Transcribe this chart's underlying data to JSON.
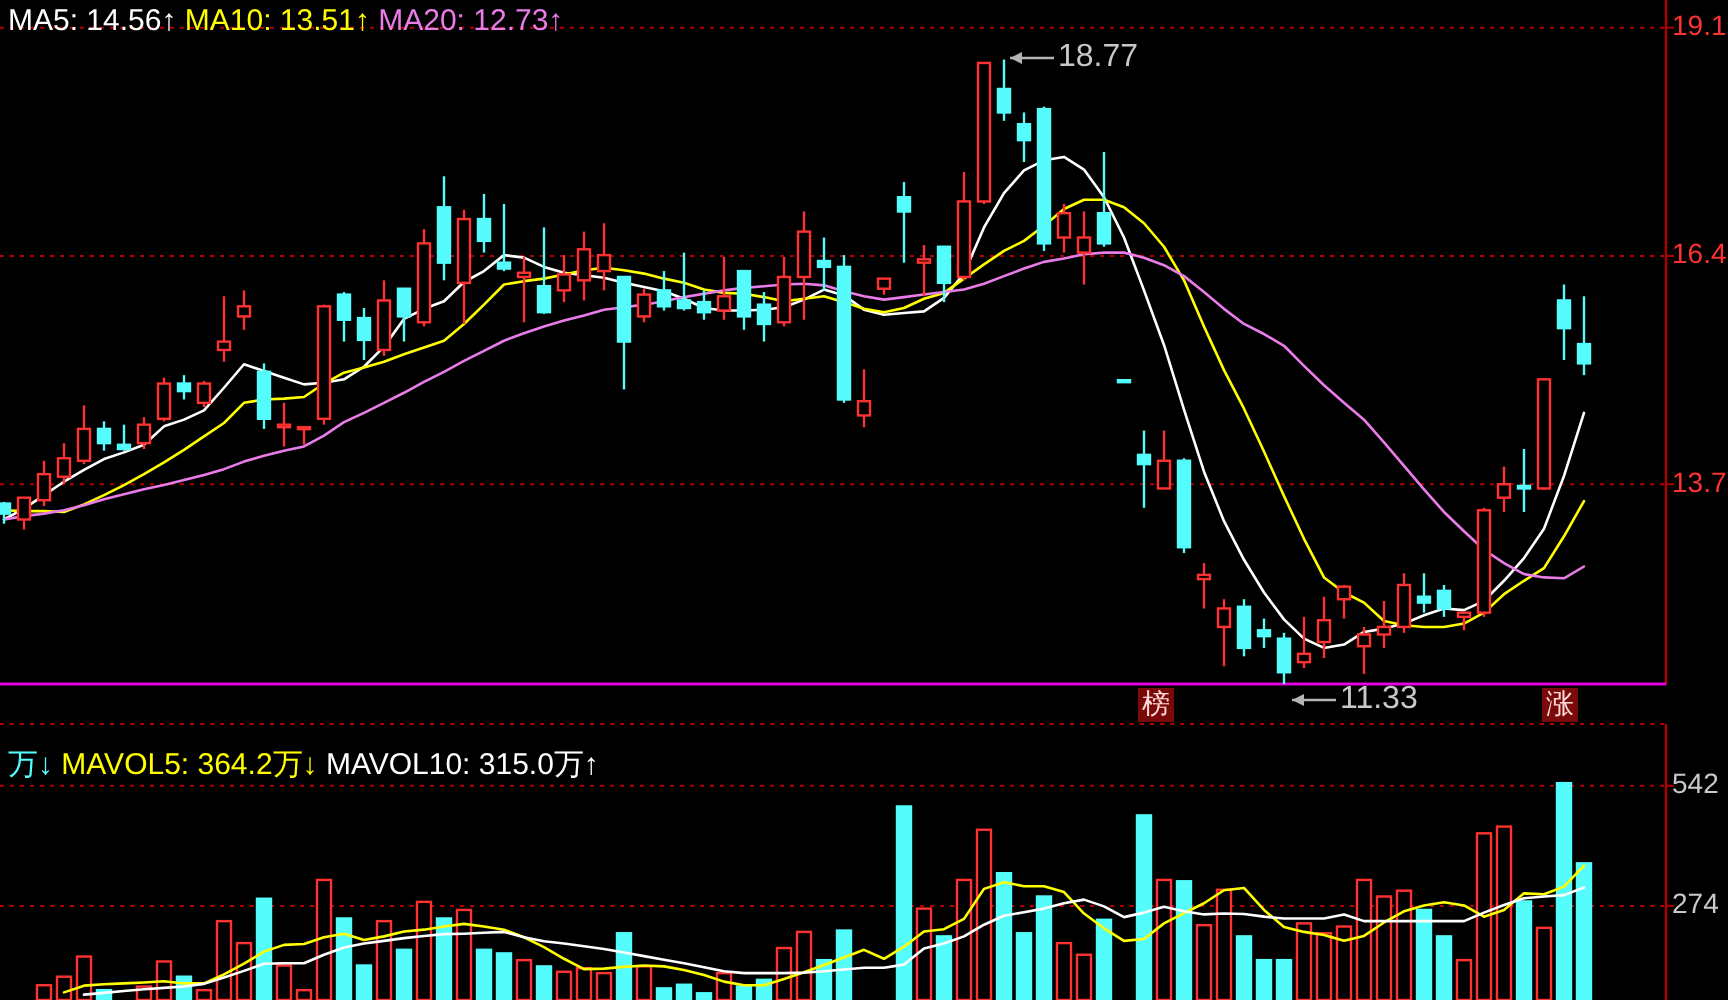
{
  "chart_data": [
    {
      "type": "candlestick",
      "categories": [
        null,
        null,
        null,
        null,
        null,
        null,
        null,
        null,
        null,
        null,
        null,
        null,
        null,
        null,
        null,
        null,
        null,
        null,
        null,
        null,
        null,
        null,
        null,
        null,
        null,
        null,
        null,
        null,
        null,
        null,
        null,
        null,
        null,
        null,
        null,
        null,
        null,
        null,
        null,
        null,
        null,
        null,
        null,
        null,
        null,
        null,
        null,
        null,
        null,
        null,
        null,
        null,
        null,
        null,
        null,
        null,
        null,
        null,
        null,
        null,
        null,
        null,
        null,
        null,
        null,
        null,
        null,
        null,
        null,
        null,
        null,
        null,
        null,
        null,
        null,
        null,
        null,
        null,
        null,
        null
      ],
      "ohlc": [
        [
          13.48,
          13.5,
          13.24,
          13.36
        ],
        [
          13.29,
          13.55,
          13.17,
          13.55
        ],
        [
          13.52,
          13.99,
          13.45,
          13.83
        ],
        [
          13.8,
          14.2,
          13.71,
          14.02
        ],
        [
          13.99,
          14.65,
          13.95,
          14.37
        ],
        [
          14.37,
          14.46,
          14.11,
          14.2
        ],
        [
          14.18,
          14.42,
          14.11,
          14.13
        ],
        [
          14.2,
          14.51,
          14.13,
          14.42
        ],
        [
          14.49,
          14.98,
          14.46,
          14.91
        ],
        [
          14.91,
          15.01,
          14.72,
          14.82
        ],
        [
          14.68,
          14.94,
          14.63,
          14.91
        ],
        [
          15.31,
          15.95,
          15.17,
          15.41
        ],
        [
          15.71,
          16.02,
          15.55,
          15.83
        ],
        [
          15.05,
          15.15,
          14.37,
          14.49
        ],
        [
          14.39,
          14.68,
          14.16,
          14.42
        ],
        [
          14.37,
          14.39,
          14.18,
          14.39
        ],
        [
          14.49,
          15.85,
          14.42,
          15.83
        ],
        [
          15.97,
          16.0,
          15.41,
          15.67
        ],
        [
          15.69,
          15.81,
          15.19,
          15.43
        ],
        [
          15.31,
          16.14,
          15.24,
          15.9
        ],
        [
          16.04,
          16.04,
          15.41,
          15.71
        ],
        [
          15.64,
          16.75,
          15.59,
          16.58
        ],
        [
          17.01,
          17.38,
          16.14,
          16.35
        ],
        [
          16.11,
          16.98,
          15.62,
          16.87
        ],
        [
          16.87,
          17.17,
          16.47,
          16.61
        ],
        [
          16.35,
          17.05,
          16.25,
          16.28
        ],
        [
          16.18,
          16.42,
          15.64,
          16.23
        ],
        [
          16.07,
          16.77,
          15.74,
          15.76
        ],
        [
          16.02,
          16.44,
          15.88,
          16.21
        ],
        [
          16.14,
          16.72,
          15.9,
          16.51
        ],
        [
          16.25,
          16.82,
          16.02,
          16.44
        ],
        [
          16.18,
          16.18,
          14.84,
          15.41
        ],
        [
          15.71,
          16.04,
          15.64,
          15.97
        ],
        [
          16.02,
          16.25,
          15.78,
          15.83
        ],
        [
          15.9,
          16.47,
          15.78,
          15.81
        ],
        [
          15.88,
          16.02,
          15.67,
          15.76
        ],
        [
          15.78,
          16.42,
          15.67,
          15.95
        ],
        [
          16.25,
          16.25,
          15.55,
          15.71
        ],
        [
          15.85,
          16.0,
          15.41,
          15.62
        ],
        [
          15.64,
          16.42,
          15.59,
          16.18
        ],
        [
          16.18,
          16.96,
          15.67,
          16.72
        ],
        [
          16.37,
          16.65,
          16.02,
          16.3
        ],
        [
          16.3,
          16.44,
          14.68,
          14.72
        ],
        [
          14.53,
          15.08,
          14.39,
          14.7
        ],
        [
          16.04,
          16.16,
          15.97,
          16.16
        ],
        [
          17.13,
          17.31,
          16.35,
          16.96
        ],
        [
          16.35,
          16.56,
          15.95,
          16.39
        ],
        [
          16.54,
          16.54,
          15.88,
          16.11
        ],
        [
          16.18,
          17.43,
          16.14,
          17.08
        ],
        [
          17.08,
          18.73,
          17.05,
          18.73
        ],
        [
          18.42,
          18.77,
          18.04,
          18.14
        ],
        [
          18.0,
          18.14,
          17.55,
          17.81
        ],
        [
          18.18,
          18.21,
          16.49,
          16.58
        ],
        [
          16.65,
          17.05,
          16.47,
          16.94
        ],
        [
          16.47,
          16.96,
          16.09,
          16.65
        ],
        [
          16.94,
          17.67,
          16.54,
          16.58
        ],
        [
          14.95,
          14.95,
          14.94,
          14.94
        ],
        [
          14.06,
          14.35,
          13.43,
          13.95
        ],
        [
          13.66,
          14.35,
          13.66,
          13.99
        ],
        [
          13.99,
          14.02,
          12.89,
          12.96
        ],
        [
          12.58,
          12.77,
          12.23,
          12.63
        ],
        [
          12.01,
          12.34,
          11.54,
          12.23
        ],
        [
          12.25,
          12.34,
          11.66,
          11.76
        ],
        [
          11.97,
          12.11,
          11.76,
          11.9
        ],
        [
          11.87,
          11.94,
          11.33,
          11.47
        ],
        [
          11.59,
          12.13,
          11.52,
          11.69
        ],
        [
          11.83,
          12.37,
          11.64,
          12.09
        ],
        [
          12.34,
          12.51,
          12.11,
          12.49
        ],
        [
          11.78,
          12.01,
          11.45,
          11.92
        ],
        [
          11.92,
          12.32,
          11.76,
          12.01
        ],
        [
          12.01,
          12.65,
          11.94,
          12.51
        ],
        [
          12.37,
          12.65,
          12.18,
          12.3
        ],
        [
          12.44,
          12.51,
          12.13,
          12.23
        ],
        [
          12.13,
          12.18,
          11.97,
          12.18
        ],
        [
          12.18,
          13.43,
          12.13,
          13.4
        ],
        [
          13.55,
          13.92,
          13.38,
          13.71
        ],
        [
          13.69,
          14.13,
          13.38,
          13.66
        ],
        [
          13.66,
          14.96,
          13.64,
          14.96
        ],
        [
          15.9,
          16.09,
          15.19,
          15.57
        ],
        [
          15.38,
          15.95,
          15.01,
          15.15
        ]
      ],
      "colors": [
        "#54fcfc",
        "#ff3232",
        "#ff3232",
        "#ff3232",
        "#ff3232",
        "#54fcfc",
        "#54fcfc",
        "#ff3232",
        "#ff3232",
        "#54fcfc",
        "#ff3232",
        "#ff3232",
        "#ff3232",
        "#54fcfc",
        "#ff3232",
        "#ff3232",
        "#ff3232",
        "#54fcfc",
        "#54fcfc",
        "#ff3232",
        "#54fcfc",
        "#ff3232",
        "#54fcfc",
        "#ff3232",
        "#54fcfc",
        "#54fcfc",
        "#ff3232",
        "#54fcfc",
        "#ff3232",
        "#ff3232",
        "#ff3232",
        "#54fcfc",
        "#ff3232",
        "#54fcfc",
        "#54fcfc",
        "#54fcfc",
        "#ff3232",
        "#54fcfc",
        "#54fcfc",
        "#ff3232",
        "#ff3232",
        "#54fcfc",
        "#54fcfc",
        "#ff3232",
        "#ff3232",
        "#54fcfc",
        "#ff3232",
        "#54fcfc",
        "#ff3232",
        "#ff3232",
        "#54fcfc",
        "#54fcfc",
        "#54fcfc",
        "#ff3232",
        "#ff3232",
        "#54fcfc",
        "#54fcfc",
        "#54fcfc",
        "#ff3232",
        "#54fcfc",
        "#ff3232",
        "#ff3232",
        "#54fcfc",
        "#54fcfc",
        "#54fcfc",
        "#ff3232",
        "#ff3232",
        "#ff3232",
        "#ff3232",
        "#ff3232",
        "#ff3232",
        "#54fcfc",
        "#54fcfc",
        "#ff3232",
        "#ff3232",
        "#ff3232",
        "#54fcfc",
        "#ff3232",
        "#54fcfc",
        "#54fcfc"
      ],
      "series": [
        {
          "name": "MA5: 14.56↑",
          "type": "line",
          "color": "#ffffff",
          "values": [
            13.29,
            13.42,
            13.58,
            13.74,
            13.88,
            14.01,
            14.09,
            14.18,
            14.4,
            14.48,
            14.59,
            14.86,
            15.14,
            15.06,
            14.98,
            14.9,
            14.92,
            14.96,
            15.11,
            15.35,
            15.68,
            15.8,
            15.89,
            16.12,
            16.25,
            16.44,
            16.41,
            16.3,
            16.23,
            16.2,
            16.17,
            16.11,
            16.06,
            16.01,
            15.92,
            15.81,
            15.78,
            15.78,
            15.79,
            15.82,
            15.91,
            16.03,
            15.96,
            15.79,
            15.73,
            15.75,
            15.77,
            15.93,
            16.22,
            16.77,
            17.18,
            17.45,
            17.57,
            17.61,
            17.46,
            17.13,
            16.65,
            16.02,
            15.37,
            14.6,
            13.86,
            13.27,
            12.81,
            12.42,
            12.1,
            11.87,
            11.76,
            11.8,
            11.95,
            11.99,
            12.05,
            12.15,
            12.23,
            12.21,
            12.32,
            12.56,
            12.83,
            13.18,
            13.81,
            14.56
          ]
        },
        {
          "name": "MA10: 13.51↑",
          "type": "line",
          "color": "#ffff00",
          "values": [
            13.4,
            13.39,
            13.39,
            13.38,
            13.47,
            13.58,
            13.7,
            13.83,
            13.97,
            14.12,
            14.28,
            14.44,
            14.68,
            14.72,
            14.73,
            14.75,
            14.91,
            15.04,
            15.1,
            15.17,
            15.26,
            15.34,
            15.42,
            15.62,
            15.85,
            16.09,
            16.13,
            16.16,
            16.21,
            16.26,
            16.29,
            16.26,
            16.22,
            16.16,
            16.11,
            16.03,
            15.99,
            15.98,
            15.94,
            15.89,
            15.92,
            15.95,
            15.88,
            15.8,
            15.76,
            15.81,
            15.92,
            15.99,
            16.16,
            16.33,
            16.49,
            16.61,
            16.79,
            16.99,
            17.1,
            17.1,
            17.01,
            16.82,
            16.54,
            16.14,
            15.59,
            15.07,
            14.61,
            14.1,
            13.57,
            13.06,
            12.6,
            12.42,
            12.3,
            12.08,
            12.03,
            12.01,
            12.01,
            12.05,
            12.18,
            12.4,
            12.56,
            12.71,
            13.09,
            13.51
          ]
        },
        {
          "name": "MA20: 12.73↑",
          "type": "line",
          "color": "#e97ce9",
          "values": [
            13.29,
            13.33,
            13.36,
            13.4,
            13.46,
            13.53,
            13.59,
            13.65,
            13.7,
            13.76,
            13.82,
            13.89,
            13.98,
            14.05,
            14.11,
            14.16,
            14.29,
            14.45,
            14.56,
            14.68,
            14.8,
            14.93,
            15.05,
            15.18,
            15.3,
            15.42,
            15.51,
            15.59,
            15.66,
            15.72,
            15.79,
            15.82,
            15.85,
            15.89,
            15.94,
            15.98,
            16.02,
            16.05,
            16.07,
            16.09,
            16.1,
            16.08,
            16.01,
            15.95,
            15.91,
            15.94,
            15.97,
            16.0,
            16.03,
            16.1,
            16.19,
            16.28,
            16.36,
            16.4,
            16.45,
            16.47,
            16.47,
            16.41,
            16.32,
            16.19,
            16.0,
            15.8,
            15.62,
            15.5,
            15.36,
            15.12,
            14.89,
            14.68,
            14.48,
            14.21,
            13.93,
            13.65,
            13.38,
            13.15,
            12.93,
            12.77,
            12.64,
            12.6,
            12.59,
            12.73
          ]
        }
      ],
      "ylim": [
        11.33,
        19.48
      ],
      "yticks": [
        {
          "value": 19.15,
          "label": "19.1"
        },
        {
          "value": 16.43,
          "label": "16.4"
        },
        {
          "value": 13.71,
          "label": "13.7"
        }
      ],
      "grid": "y",
      "tick_labels": "y",
      "annotations": [
        "18.77",
        "11.33",
        "榜",
        "涨"
      ]
    },
    {
      "type": "bar",
      "categories": [
        null,
        null,
        null,
        null,
        null,
        null,
        null,
        null,
        null,
        null,
        null,
        null,
        null,
        null,
        null,
        null,
        null,
        null,
        null,
        null,
        null,
        null,
        null,
        null,
        null,
        null,
        null,
        null,
        null,
        null,
        null,
        null,
        null,
        null,
        null,
        null,
        null,
        null,
        null,
        null,
        null,
        null,
        null,
        null,
        null,
        null,
        null,
        null,
        null,
        null,
        null,
        null,
        null,
        null,
        null,
        null,
        null,
        null,
        null,
        null,
        null,
        null,
        null,
        null,
        null,
        null,
        null,
        null,
        null,
        null,
        null,
        null,
        null,
        null,
        null,
        null,
        null,
        null,
        null,
        null
      ],
      "series": [
        {
          "type": "bar",
          "values": [
            null,
            null,
            97,
            116,
            161,
            86,
            null,
            94,
            150,
            116,
            86,
            240,
            191,
            290,
            141,
            86,
            332,
            246,
            141,
            240,
            176,
            283,
            246,
            265,
            176,
            168,
            153,
            139,
            127,
            135,
            124,
            213,
            139,
            90,
            98,
            79,
            124,
            94,
            109,
            180,
            216,
            153,
            219,
            null,
            null,
            496,
            268,
            206,
            332,
            444,
            347,
            213,
            295,
            191,
            165,
            243,
            null,
            476,
            332,
            329,
            231,
            310,
            206,
            153,
            153,
            235,
            213,
            228,
            332,
            295,
            308,
            265,
            206,
            153,
            436,
            451,
            284,
            225,
            548,
            369
          ],
          "colors": [
            "#54fcfc",
            "#ff3232",
            "#ff3232",
            "#ff3232",
            "#ff3232",
            "#54fcfc",
            "#54fcfc",
            "#ff3232",
            "#ff3232",
            "#54fcfc",
            "#ff3232",
            "#ff3232",
            "#ff3232",
            "#54fcfc",
            "#ff3232",
            "#ff3232",
            "#ff3232",
            "#54fcfc",
            "#54fcfc",
            "#ff3232",
            "#54fcfc",
            "#ff3232",
            "#54fcfc",
            "#ff3232",
            "#54fcfc",
            "#54fcfc",
            "#ff3232",
            "#54fcfc",
            "#ff3232",
            "#ff3232",
            "#ff3232",
            "#54fcfc",
            "#ff3232",
            "#54fcfc",
            "#54fcfc",
            "#54fcfc",
            "#ff3232",
            "#54fcfc",
            "#54fcfc",
            "#ff3232",
            "#ff3232",
            "#54fcfc",
            "#54fcfc",
            "#ff3232",
            "#ff3232",
            "#54fcfc",
            "#ff3232",
            "#54fcfc",
            "#ff3232",
            "#ff3232",
            "#54fcfc",
            "#54fcfc",
            "#54fcfc",
            "#ff3232",
            "#ff3232",
            "#54fcfc",
            "#54fcfc",
            "#54fcfc",
            "#ff3232",
            "#54fcfc",
            "#ff3232",
            "#ff3232",
            "#54fcfc",
            "#54fcfc",
            "#54fcfc",
            "#ff3232",
            "#ff3232",
            "#ff3232",
            "#ff3232",
            "#ff3232",
            "#ff3232",
            "#54fcfc",
            "#54fcfc",
            "#ff3232",
            "#ff3232",
            "#ff3232",
            "#54fcfc",
            "#ff3232",
            "#54fcfc",
            "#54fcfc"
          ]
        },
        {
          "name": "MAVOL5: 364.2万↓",
          "type": "line",
          "color": "#ffff00",
          "values": [
            null,
            null,
            null,
            81,
            96,
            99,
            101,
            103,
            106,
            101,
            101,
            121,
            145,
            172,
            187,
            189,
            204,
            212,
            198,
            206,
            217,
            221,
            228,
            234,
            228,
            221,
            204,
            182,
            156,
            133,
            134,
            138,
            141,
            139,
            131,
            120,
            105,
            97,
            97,
            111,
            126,
            142,
            159,
            176,
            156,
            183,
            217,
            222,
            245,
            312,
            327,
            318,
            318,
            305,
            257,
            224,
            196,
            200,
            235,
            258,
            280,
            309,
            314,
            265,
            227,
            216,
            209,
            196,
            207,
            237,
            262,
            275,
            282,
            275,
            250,
            265,
            302,
            300,
            317,
            364
          ]
        },
        {
          "name": "MAVOL10: 315.0万↑",
          "type": "line",
          "color": "#ffffff",
          "values": [
            null,
            null,
            null,
            null,
            76,
            80,
            84,
            88,
            91,
            94,
            100,
            114,
            129,
            145,
            146,
            146,
            165,
            181,
            190,
            196,
            202,
            207,
            211,
            212,
            214,
            216,
            204,
            195,
            190,
            184,
            178,
            170,
            162,
            154,
            146,
            137,
            128,
            124,
            124,
            124,
            125,
            128,
            132,
            136,
            136,
            143,
            179,
            190,
            206,
            232,
            252,
            260,
            268,
            280,
            288,
            273,
            249,
            259,
            272,
            262,
            255,
            257,
            256,
            250,
            246,
            246,
            246,
            255,
            240,
            240,
            240,
            240,
            240,
            240,
            259,
            276,
            291,
            295,
            298,
            315
          ]
        }
      ],
      "ylim": [
        64,
        680
      ],
      "yticks": [
        542,
        274
      ],
      "grid": "y",
      "tick_labels": "y",
      "annotations": [
        "万↓"
      ]
    }
  ]
}
